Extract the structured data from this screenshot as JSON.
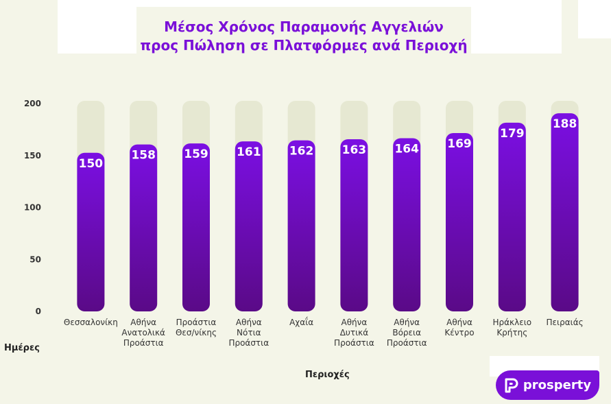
{
  "colors": {
    "background": "#f4f5e8",
    "bar_track": "#e6e8d2",
    "bar_top": "#7b0fe3",
    "bar_bottom": "#5a0a87",
    "title": "#7a10d8",
    "logo_bg": "#7a10d8"
  },
  "logo": {
    "text": "prosperty",
    "icon": "prosperty-logo-icon"
  },
  "chart_data": {
    "type": "bar",
    "title_line1": "Μέσος Χρόνος Παραμονής Αγγελιών",
    "title_line2": "προς Πώληση σε Πλατφόρμες  ανά Περιοχή",
    "xlabel": "Περιοχές",
    "ylabel": "Ημέρες",
    "ylim": [
      0,
      200
    ],
    "yticks": [
      0,
      50,
      100,
      150,
      200
    ],
    "grid": false,
    "categories": [
      [
        "Θεσσαλονίκη"
      ],
      [
        "Αθήνα",
        "Ανατολικά",
        "Προάστια"
      ],
      [
        "Προάστια",
        "Θεσ/νίκης"
      ],
      [
        "Αθήνα",
        "Νότια",
        "Προάστια"
      ],
      [
        "Αχαΐα"
      ],
      [
        "Αθήνα",
        "Δυτικά",
        "Προάστια"
      ],
      [
        "Αθήνα",
        "Βόρεια",
        "Προάστια"
      ],
      [
        "Αθήνα",
        "Κέντρο"
      ],
      [
        "Ηράκλειο",
        "Κρήτης"
      ],
      [
        "Πειραιάς"
      ]
    ],
    "values": [
      150,
      158,
      159,
      161,
      162,
      163,
      164,
      169,
      179,
      188
    ]
  }
}
